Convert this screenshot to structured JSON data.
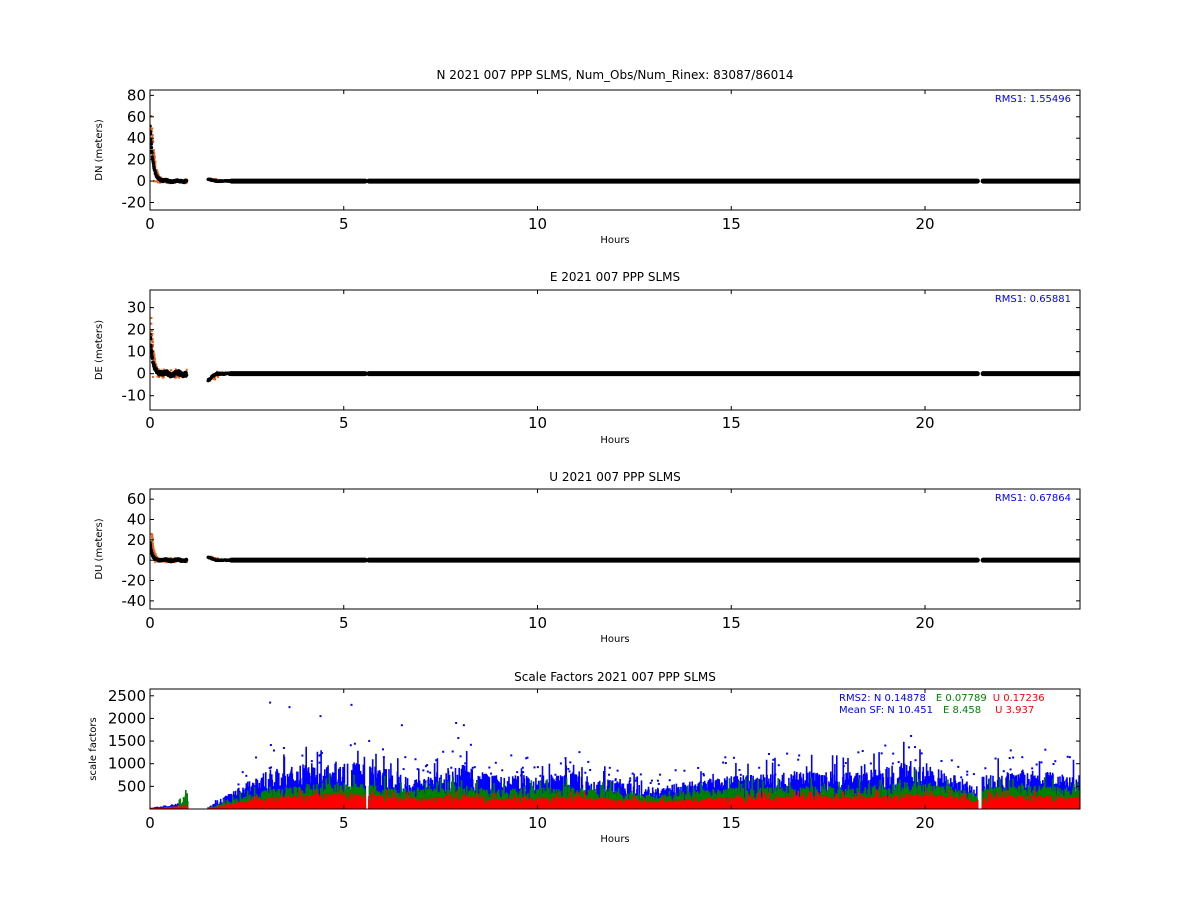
{
  "colors": {
    "residual": "#000000",
    "outlier": "#e8641e",
    "N": "#0000ff",
    "E": "#008000",
    "U": "#ff0000",
    "rms_text": "#0000ff"
  },
  "chart_data": [
    {
      "id": "north",
      "type": "scatter",
      "title": "N 2021 007 PPP  SLMS, Num_Obs/Num_Rinex: 83087/86014",
      "xlabel": "Hours",
      "ylabel": "DN (meters)",
      "xlim": [
        0,
        24
      ],
      "ylim": [
        -27,
        85
      ],
      "xticks": [
        0,
        5,
        10,
        15,
        20
      ],
      "yticks": [
        -20,
        0,
        20,
        40,
        60,
        80
      ],
      "rms_label": "RMS1:  1.55496",
      "gaps_hours": [
        [
          0.95,
          1.5
        ],
        [
          5.55,
          5.65
        ],
        [
          21.35,
          21.5
        ]
      ],
      "spike": {
        "peak": 55,
        "outlier_peak": 72,
        "decay_hours": 0.07,
        "second_segment_start": 1.5,
        "second_segment_offset": 2
      }
    },
    {
      "id": "east",
      "type": "scatter",
      "title": "E 2021 007 PPP  SLMS",
      "xlabel": "Hours",
      "ylabel": "DE (meters)",
      "xlim": [
        0,
        24
      ],
      "ylim": [
        -16.5,
        38
      ],
      "xticks": [
        0,
        5,
        10,
        15,
        20
      ],
      "yticks": [
        -10,
        0,
        10,
        20,
        30
      ],
      "rms_label": "RMS1:  0.65881",
      "gaps_hours": [
        [
          0.95,
          1.5
        ],
        [
          5.55,
          5.65
        ],
        [
          21.35,
          21.5
        ]
      ],
      "spike": {
        "peak": 20,
        "outlier_peak": 30,
        "decay_hours": 0.06,
        "second_segment_start": 1.5,
        "second_segment_offset": -3
      }
    },
    {
      "id": "up",
      "type": "scatter",
      "title": "U 2021 007 PPP  SLMS",
      "xlabel": "Hours",
      "ylabel": "DU (meters)",
      "xlim": [
        0,
        24
      ],
      "ylim": [
        -48,
        70
      ],
      "xticks": [
        0,
        5,
        10,
        15,
        20
      ],
      "yticks": [
        -40,
        -20,
        0,
        20,
        40,
        60
      ],
      "rms_label": "RMS1:  0.67864",
      "gaps_hours": [
        [
          0.95,
          1.5
        ],
        [
          5.55,
          5.65
        ],
        [
          21.35,
          21.5
        ]
      ],
      "spike": {
        "peak": 18,
        "outlier_peak": 45,
        "decay_hours": 0.05,
        "second_segment_start": 1.5,
        "second_segment_offset": 3
      }
    },
    {
      "id": "scale",
      "type": "scatter",
      "title": "Scale Factors 2021 007 PPP  SLMS",
      "xlabel": "Hours",
      "ylabel": "scale factors",
      "xlim": [
        0,
        24
      ],
      "ylim": [
        0,
        2650
      ],
      "xticks": [
        0,
        5,
        10,
        15,
        20
      ],
      "yticks": [
        500,
        1000,
        1500,
        2000,
        2500
      ],
      "legend_placement": "top-right",
      "stats": {
        "rms2_prefix": "RMS2: N  0.14878",
        "rms2_e": "E  0.07789",
        "rms2_u": "U  0.17236",
        "mean_prefix": "Mean SF: N  10.451",
        "mean_e": "E   8.458",
        "mean_u": "U   3.937"
      },
      "series": [
        {
          "name": "N",
          "envelope": [
            [
              0.0,
              30
            ],
            [
              0.9,
              150
            ],
            [
              1.5,
              30
            ],
            [
              2.2,
              350
            ],
            [
              3.0,
              700
            ],
            [
              4.0,
              800
            ],
            [
              5.0,
              850
            ],
            [
              6.0,
              750
            ],
            [
              7.0,
              550
            ],
            [
              8.0,
              800
            ],
            [
              9.0,
              600
            ],
            [
              10.0,
              600
            ],
            [
              11.0,
              650
            ],
            [
              12.0,
              500
            ],
            [
              13.0,
              380
            ],
            [
              14.0,
              500
            ],
            [
              15.0,
              600
            ],
            [
              16.0,
              620
            ],
            [
              17.0,
              700
            ],
            [
              18.0,
              650
            ],
            [
              19.0,
              750
            ],
            [
              19.8,
              900
            ],
            [
              20.5,
              700
            ],
            [
              21.35,
              400
            ],
            [
              21.5,
              600
            ],
            [
              22.5,
              700
            ],
            [
              24.0,
              600
            ]
          ]
        },
        {
          "name": "E",
          "envelope": [
            [
              0.0,
              20
            ],
            [
              0.9,
              350
            ],
            [
              1.5,
              20
            ],
            [
              2.2,
              200
            ],
            [
              3.0,
              350
            ],
            [
              4.0,
              450
            ],
            [
              5.0,
              480
            ],
            [
              6.0,
              420
            ],
            [
              7.0,
              350
            ],
            [
              8.0,
              450
            ],
            [
              9.0,
              350
            ],
            [
              10.0,
              380
            ],
            [
              11.0,
              400
            ],
            [
              12.0,
              330
            ],
            [
              13.0,
              250
            ],
            [
              14.0,
              330
            ],
            [
              15.0,
              380
            ],
            [
              16.0,
              400
            ],
            [
              17.0,
              420
            ],
            [
              18.0,
              400
            ],
            [
              19.0,
              450
            ],
            [
              19.8,
              500
            ],
            [
              20.5,
              430
            ],
            [
              21.35,
              280
            ],
            [
              21.5,
              380
            ],
            [
              22.5,
              430
            ],
            [
              24.0,
              380
            ]
          ]
        },
        {
          "name": "U",
          "envelope": [
            [
              0.0,
              15
            ],
            [
              0.9,
              60
            ],
            [
              1.5,
              10
            ],
            [
              2.2,
              120
            ],
            [
              3.0,
              220
            ],
            [
              4.0,
              260
            ],
            [
              5.0,
              300
            ],
            [
              6.0,
              250
            ],
            [
              7.0,
              200
            ],
            [
              8.0,
              260
            ],
            [
              9.0,
              200
            ],
            [
              10.0,
              220
            ],
            [
              11.0,
              230
            ],
            [
              12.0,
              190
            ],
            [
              13.0,
              150
            ],
            [
              14.0,
              190
            ],
            [
              15.0,
              220
            ],
            [
              16.0,
              230
            ],
            [
              17.0,
              240
            ],
            [
              18.0,
              230
            ],
            [
              19.0,
              250
            ],
            [
              19.8,
              280
            ],
            [
              20.5,
              250
            ],
            [
              21.35,
              170
            ],
            [
              21.5,
              220
            ],
            [
              22.5,
              250
            ],
            [
              24.0,
              220
            ]
          ]
        }
      ],
      "outliers": [
        [
          3.1,
          2350
        ],
        [
          3.6,
          2250
        ],
        [
          4.4,
          2050
        ],
        [
          5.2,
          2300
        ],
        [
          7.9,
          1900
        ],
        [
          8.1,
          1850
        ],
        [
          6.5,
          1850
        ]
      ]
    }
  ]
}
